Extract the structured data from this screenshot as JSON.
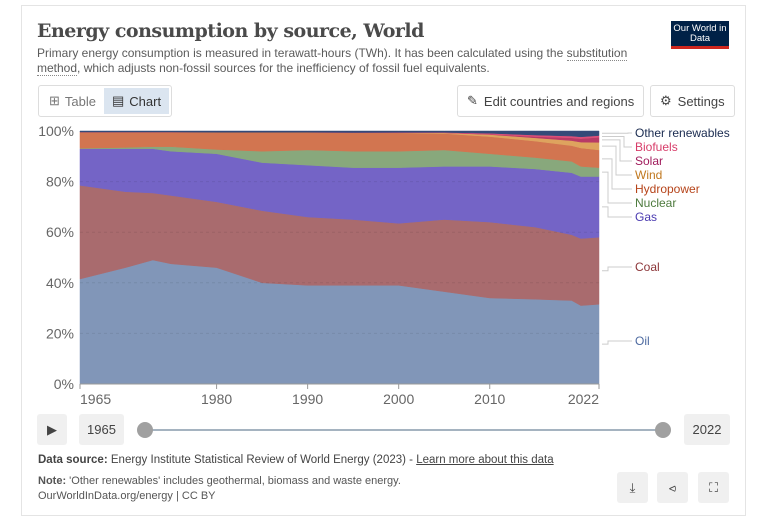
{
  "header": {
    "title": "Energy consumption by source, World",
    "subtitle_pre": "Primary energy consumption is measured in terawatt-hours (TWh). It has been calculated using the ",
    "subtitle_link": "substitution method",
    "subtitle_post": ", which adjusts non-fossil sources for the inefficiency of fossil fuel equivalents.",
    "logo": "Our World in Data"
  },
  "tabs": [
    {
      "label": "Table",
      "icon": "table-icon"
    },
    {
      "label": "Chart",
      "icon": "chart-icon",
      "active": true
    }
  ],
  "buttons": {
    "edit": "Edit countries and regions",
    "settings": "Settings"
  },
  "timeline": {
    "start": "1965",
    "end": "2022"
  },
  "footer": {
    "source_label": "Data source:",
    "source_text": "Energy Institute Statistical Review of World Energy (2023) - ",
    "source_link": "Learn more about this data",
    "note_label": "Note:",
    "note_text": "'Other renewables' includes geothermal, biomass and waste energy.",
    "url": "OurWorldInData.org/energy | CC BY"
  },
  "chart_data": {
    "type": "area",
    "stacked": true,
    "relative": true,
    "x": [
      1965,
      1970,
      1973,
      1975,
      1980,
      1985,
      1990,
      1995,
      2000,
      2005,
      2010,
      2015,
      2019,
      2020,
      2022
    ],
    "xticks": [
      "1965",
      "1980",
      "1990",
      "2000",
      "2010",
      "2022"
    ],
    "yticks": [
      "0%",
      "20%",
      "40%",
      "60%",
      "80%",
      "100%"
    ],
    "ylim": [
      0,
      100
    ],
    "series": [
      {
        "name": "Oil",
        "color": "#8196b8",
        "label_color": "#4d6aa0",
        "values": [
          41.5,
          46,
          49,
          47.5,
          46,
          40,
          39,
          39,
          39,
          36.5,
          34,
          33.5,
          33,
          31,
          31.5
        ]
      },
      {
        "name": "Coal",
        "color": "#a96b6e",
        "label_color": "#8c3538",
        "values": [
          37,
          30,
          26.5,
          27,
          26,
          28.5,
          27,
          26,
          24.5,
          28.5,
          30,
          28.5,
          26,
          26.5,
          26.5
        ]
      },
      {
        "name": "Gas",
        "color": "#7464c6",
        "label_color": "#4a3ab0",
        "values": [
          14.5,
          17,
          17.5,
          17.5,
          19,
          19,
          20.5,
          20.5,
          22,
          21,
          22,
          23,
          24.5,
          24.5,
          24
        ]
      },
      {
        "name": "Nuclear",
        "color": "#88a87c",
        "label_color": "#4d7a3d",
        "values": [
          0.2,
          0.5,
          0.8,
          1.8,
          1.7,
          4.5,
          6,
          6.5,
          6.5,
          6.5,
          5,
          4.5,
          4.5,
          4,
          3.5
        ]
      },
      {
        "name": "Hydropower",
        "color": "#d27550",
        "label_color": "#b6441a",
        "values": [
          6.4,
          6.1,
          5.8,
          5.8,
          6.8,
          7.5,
          7,
          7.4,
          7.3,
          6.5,
          6.8,
          6.5,
          6.2,
          7.3,
          7
        ]
      },
      {
        "name": "Wind",
        "color": "#dea35e",
        "label_color": "#c0781f",
        "values": [
          0,
          0,
          0,
          0,
          0,
          0,
          0,
          0,
          0.05,
          0.3,
          0.8,
          1.3,
          2,
          2.3,
          3
        ]
      },
      {
        "name": "Solar",
        "color": "#b83a66",
        "label_color": "#a01c5c",
        "values": [
          0,
          0,
          0,
          0,
          0,
          0,
          0,
          0,
          0,
          0,
          0.1,
          0.5,
          1.1,
          1.4,
          2
        ]
      },
      {
        "name": "Biofuels",
        "color": "#dc4f78",
        "label_color": "#d73c69",
        "values": [
          0,
          0,
          0,
          0,
          0,
          0,
          0,
          0,
          0.1,
          0.15,
          0.4,
          0.6,
          0.7,
          0.7,
          0.7
        ]
      },
      {
        "name": "Other renewables",
        "color": "#344a78",
        "label_color": "#1a2b50",
        "values": [
          0.4,
          0.4,
          0.4,
          0.4,
          0.5,
          0.5,
          0.5,
          0.6,
          0.55,
          0.55,
          0.9,
          1.6,
          2.0,
          2.3,
          1.8
        ]
      }
    ]
  }
}
